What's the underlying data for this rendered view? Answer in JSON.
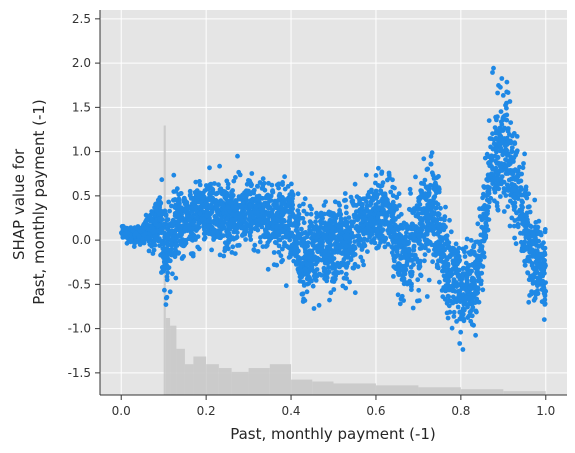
{
  "chart_data": {
    "type": "scatter",
    "xlabel": "Past, monthly payment (-1)",
    "ylabel": [
      "SHAP value for",
      "Past, monthly payment (-1)"
    ],
    "xlim": [
      -0.05,
      1.05
    ],
    "ylim": [
      -1.75,
      2.6
    ],
    "x_ticks": [
      "0.0",
      "0.2",
      "0.4",
      "0.6",
      "0.8",
      "1.0"
    ],
    "y_ticks": [
      "2.5",
      "2.0",
      "1.5",
      "1.0",
      "0.5",
      "0.0",
      "-0.5",
      "-1.0",
      "-1.5"
    ],
    "grid": true,
    "background": "#e5e5e5",
    "point_color": "#1e88e5",
    "histogram_color": "#c8c8c8",
    "series": [
      {
        "trend": [
          [
            0.0,
            0.08
          ],
          [
            0.05,
            0.05
          ],
          [
            0.09,
            0.2
          ],
          [
            0.105,
            -0.25
          ],
          [
            0.12,
            0.1
          ],
          [
            0.15,
            0.2
          ],
          [
            0.2,
            0.3
          ],
          [
            0.25,
            0.25
          ],
          [
            0.3,
            0.3
          ],
          [
            0.35,
            0.25
          ],
          [
            0.4,
            0.2
          ],
          [
            0.43,
            -0.2
          ],
          [
            0.47,
            -0.1
          ],
          [
            0.5,
            -0.05
          ],
          [
            0.55,
            0.1
          ],
          [
            0.6,
            0.3
          ],
          [
            0.63,
            0.35
          ],
          [
            0.66,
            -0.2
          ],
          [
            0.7,
            0.1
          ],
          [
            0.73,
            0.35
          ],
          [
            0.76,
            -0.2
          ],
          [
            0.8,
            -0.6
          ],
          [
            0.84,
            -0.4
          ],
          [
            0.87,
            0.8
          ],
          [
            0.9,
            1.2
          ],
          [
            0.93,
            0.6
          ],
          [
            0.96,
            -0.1
          ],
          [
            1.0,
            -0.4
          ]
        ],
        "spread": [
          0.05,
          0.1,
          0.25,
          0.6,
          0.35,
          0.3,
          0.3,
          0.3,
          0.3,
          0.3,
          0.4,
          0.4,
          0.4,
          0.35,
          0.35,
          0.35,
          0.35,
          0.45,
          0.45,
          0.45,
          0.45,
          0.4,
          0.45,
          0.5,
          0.55,
          0.5,
          0.4,
          0.45
        ],
        "count": 3800
      }
    ],
    "histogram": {
      "bin_start": [
        0.1,
        0.105,
        0.115,
        0.13,
        0.15,
        0.17,
        0.2,
        0.23,
        0.26,
        0.3,
        0.35,
        0.4,
        0.45,
        0.5,
        0.6,
        0.7,
        0.8,
        0.9
      ],
      "bin_end": [
        0.105,
        0.115,
        0.13,
        0.15,
        0.17,
        0.2,
        0.23,
        0.26,
        0.3,
        0.35,
        0.4,
        0.45,
        0.5,
        0.6,
        0.7,
        0.8,
        0.9,
        1.0
      ],
      "height": [
        0.7,
        0.2,
        0.18,
        0.12,
        0.08,
        0.1,
        0.08,
        0.07,
        0.06,
        0.07,
        0.08,
        0.04,
        0.035,
        0.03,
        0.025,
        0.02,
        0.015,
        0.01
      ]
    }
  }
}
